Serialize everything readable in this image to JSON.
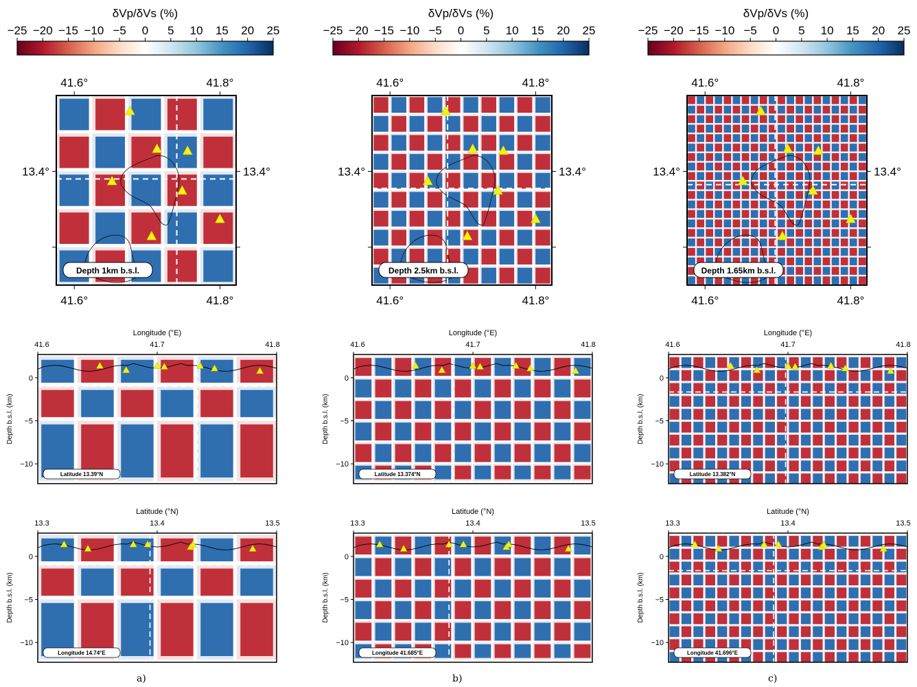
{
  "colorbar": {
    "label": "δVp/δVs (%)",
    "ticks": [
      "−25",
      "−20",
      "−15",
      "−10",
      "−5",
      "0",
      "5",
      "10",
      "15",
      "20",
      "25"
    ],
    "colormap": [
      "#67001f",
      "#b2182b",
      "#d6604d",
      "#f4a582",
      "#fddbc7",
      "#ffffff",
      "#d1e5f0",
      "#92c5de",
      "#4393c3",
      "#2166ac",
      "#053061"
    ]
  },
  "map_axes": {
    "x_ticks": [
      "41.6°",
      "41.8°"
    ],
    "y_tick": "13.4°"
  },
  "profile_axes": {
    "lon_label": "Longitude (°E)",
    "lat_label": "Latitude (°N)",
    "depth_label": "Depth b.s.l. (km)",
    "lon_ticks": [
      "41.6",
      "41.7",
      "41.8"
    ],
    "lat_ticks": [
      "13.3",
      "13.4",
      "13.5"
    ],
    "depth_ticks": [
      "0",
      "−5",
      "−10"
    ]
  },
  "columns": [
    {
      "panel_label": "a)",
      "map_depth_label": "Depth 1km b.s.l.",
      "lon_section_label": "Latitude 13.39°N",
      "lat_section_label": "Longitude 14.74°E",
      "checker": {
        "map_cells": 5,
        "section_cells_x": 6,
        "depth_layers": [
          2.5,
          -1,
          -5,
          -12
        ],
        "phase": 1
      }
    },
    {
      "panel_label": "b)",
      "map_depth_label": "Depth 2.5km b.s.l.",
      "lon_section_label": "Latitude 13.374°N",
      "lat_section_label": "Longitude 41.685°E",
      "checker": {
        "map_cells": 10,
        "section_cells_x": 12,
        "depth_layers": [
          2.5,
          0,
          -2.5,
          -5,
          -7.5,
          -10,
          -12
        ],
        "phase": 0
      }
    },
    {
      "panel_label": "c)",
      "map_depth_label": "Depth 1.65km b.s.l.",
      "lon_section_label": "Latitude 13.382°N",
      "lat_section_label": "Longitude 41.696°E",
      "checker": {
        "map_cells": 20,
        "section_cells_x": 20,
        "depth_layers": [
          2.5,
          1.0,
          -0.5,
          -2,
          -3.5,
          -5,
          -6.5,
          -8,
          -9.5,
          -11,
          -12.5
        ],
        "phase": 0
      }
    }
  ]
}
